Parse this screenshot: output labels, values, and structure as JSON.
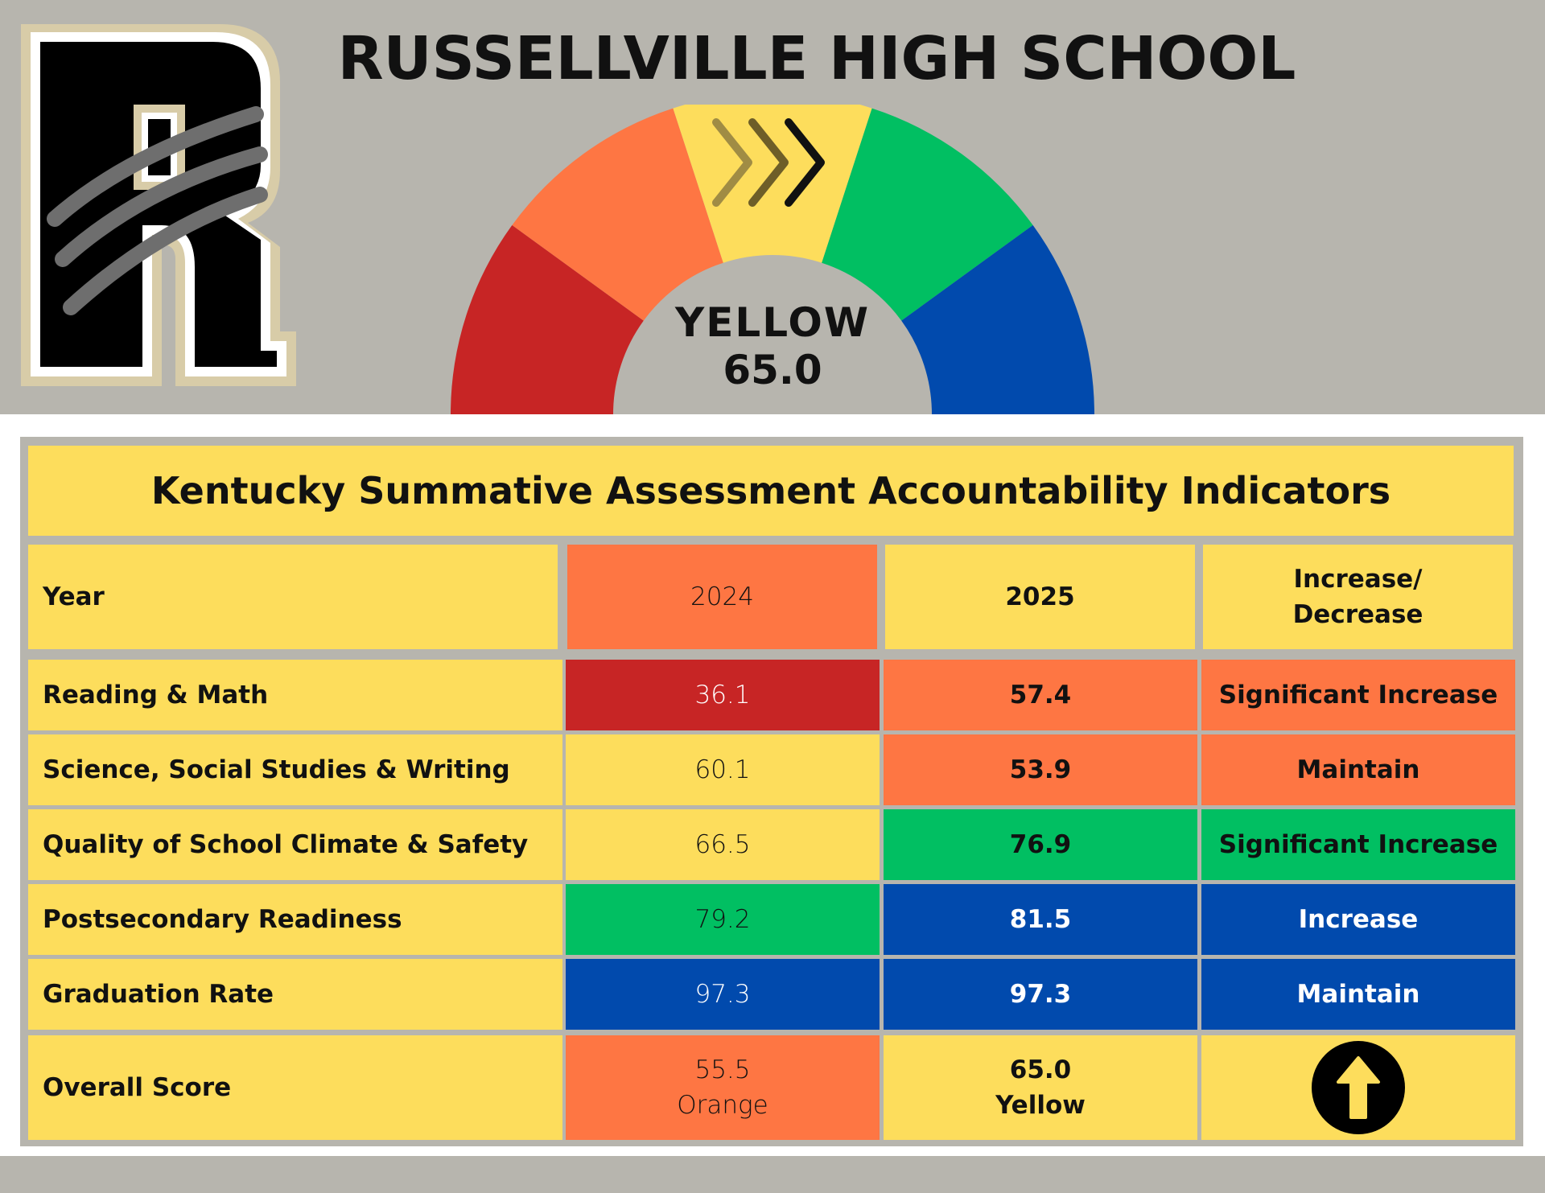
{
  "header": {
    "school_name": "RUSSELLVILLE HIGH SCHOOL",
    "logo_letter": "R",
    "logo_icon": "letter-r-claw-logo",
    "gauge": {
      "level_label": "YELLOW",
      "score": "65.0",
      "segments": [
        "red",
        "orange",
        "yellow",
        "green",
        "blue"
      ],
      "active_segment": "yellow",
      "indicator_icon": "triple-chevron-right-icon"
    }
  },
  "table": {
    "title": "Kentucky Summative Assessment Accountability Indicators",
    "headers": {
      "year": "Year",
      "y2024": "2024",
      "y2025": "2025",
      "change": "Increase/ Decrease"
    },
    "rows": [
      {
        "label": "Reading & Math",
        "v2024": "36.1",
        "v2025": "57.4",
        "change": "Significant Increase",
        "c2024": "red",
        "c2025": "orange",
        "cchange": "orange"
      },
      {
        "label": "Science, Social Studies & Writing",
        "v2024": "60.1",
        "v2025": "53.9",
        "change": "Maintain",
        "c2024": "yellow",
        "c2025": "orange",
        "cchange": "orange"
      },
      {
        "label": "Quality of School Climate & Safety",
        "v2024": "66.5",
        "v2025": "76.9",
        "change": "Significant Increase",
        "c2024": "yellow",
        "c2025": "green",
        "cchange": "green"
      },
      {
        "label": "Postsecondary Readiness",
        "v2024": "79.2",
        "v2025": "81.5",
        "change": "Increase",
        "c2024": "green",
        "c2025": "blue",
        "cchange": "blue"
      },
      {
        "label": "Graduation Rate",
        "v2024": "97.3",
        "v2025": "97.3",
        "change": "Maintain",
        "c2024": "blue",
        "c2025": "blue",
        "cchange": "blue"
      }
    ],
    "overall": {
      "label": "Overall Score",
      "v2024_score": "55.5",
      "v2024_color": "Orange",
      "v2025_score": "65.0",
      "v2025_color": "Yellow",
      "change_icon": "up-arrow-icon"
    }
  },
  "colors": {
    "red": "#c72525",
    "orange": "#fe7643",
    "yellow": "#fddd5c",
    "green": "#01bf62",
    "blue": "#014aad",
    "background": "#b7b5ae"
  }
}
